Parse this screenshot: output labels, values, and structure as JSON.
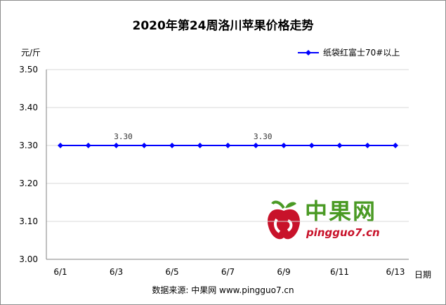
{
  "title": "2020年第24周洛川苹果价格走势",
  "ylabel_unit": "元/斤",
  "xlabel_unit": "日期",
  "source_text": "数据来源: 中果网 www.pingguo7.cn",
  "watermark": {
    "brand_cn": "中果网",
    "url": "pingguo7.cn"
  },
  "colors": {
    "series": "#0000ff",
    "grid": "#d9d9d9",
    "axis": "#808080",
    "brand_green": "#4a9a24",
    "brand_red": "#c8122a"
  },
  "chart_data": {
    "type": "line",
    "title": "2020年第24周洛川苹果价格走势",
    "ylabel": "元/斤",
    "xlabel": "日期",
    "ylim": [
      3.0,
      3.5
    ],
    "yticks": [
      "3.00",
      "3.10",
      "3.20",
      "3.30",
      "3.40",
      "3.50"
    ],
    "x": [
      "6/1",
      "6/2",
      "6/3",
      "6/4",
      "6/5",
      "6/6",
      "6/7",
      "6/8",
      "6/9",
      "6/10",
      "6/11",
      "6/12",
      "6/13"
    ],
    "xtick_labels": [
      "6/1",
      "",
      "6/3",
      "",
      "6/5",
      "",
      "6/7",
      "",
      "6/9",
      "",
      "6/11",
      "",
      "6/13"
    ],
    "series": [
      {
        "name": "纸袋红富士70#以上",
        "values": [
          3.3,
          3.3,
          3.3,
          3.3,
          3.3,
          3.3,
          3.3,
          3.3,
          3.3,
          3.3,
          3.3,
          3.3,
          3.3
        ]
      }
    ],
    "data_labels": [
      {
        "index": 2,
        "text": "3.30"
      },
      {
        "index": 7,
        "text": "3.30"
      }
    ],
    "grid": true,
    "legend": "top-right"
  }
}
